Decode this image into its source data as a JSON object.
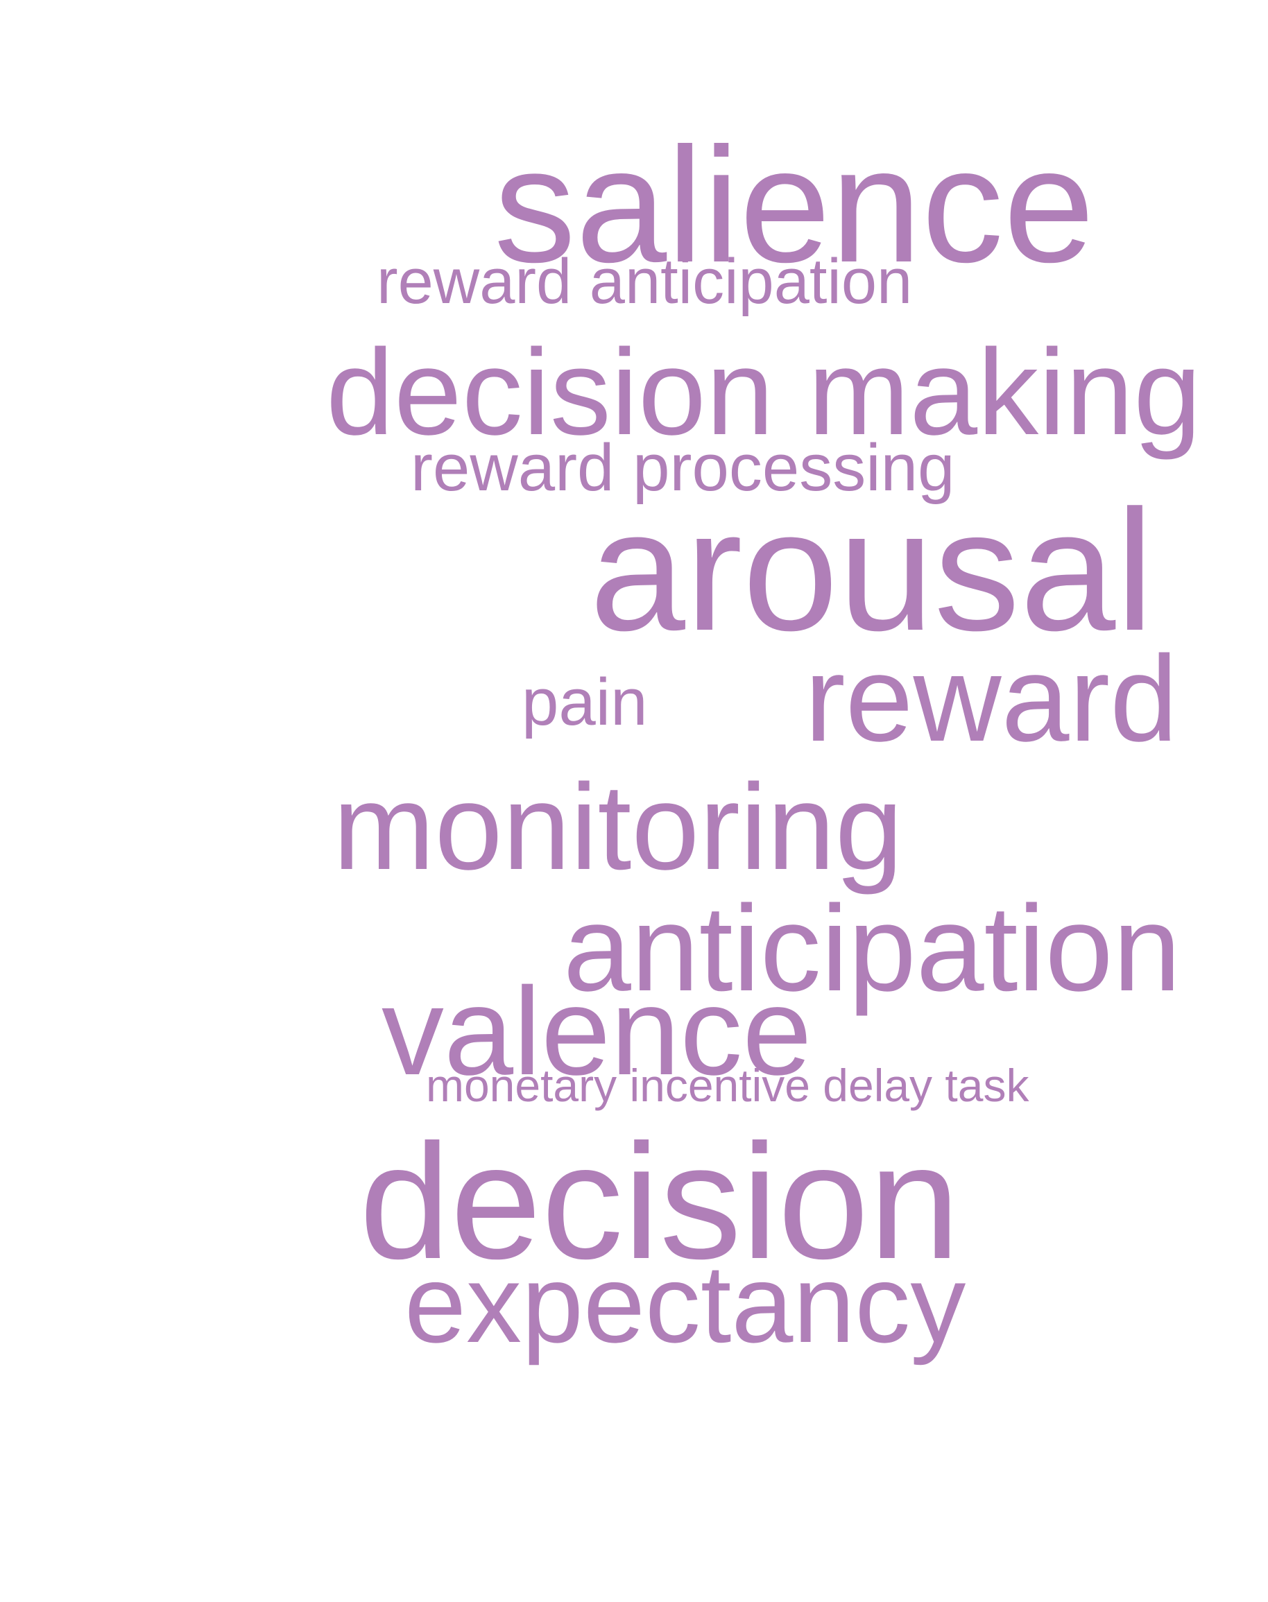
{
  "word_cloud": {
    "color": "#b07fb8",
    "words": {
      "salience": "salience",
      "reward_anticipation": "reward anticipation",
      "decision_making": "decision making",
      "reward_processing": "reward processing",
      "arousal": "arousal",
      "pain": "pain",
      "reward": "reward",
      "monitoring": "monitoring",
      "anticipation": "anticipation",
      "valence": "valence",
      "monetary_incentive_delay_task": "monetary incentive delay task",
      "decision": "decision",
      "expectancy": "expectancy"
    }
  }
}
